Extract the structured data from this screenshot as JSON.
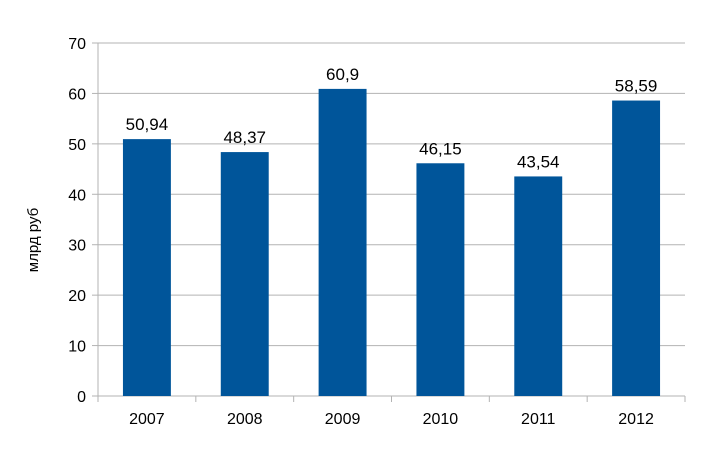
{
  "chart_data": {
    "type": "bar",
    "title": "",
    "xlabel": "",
    "ylabel": "млрд руб",
    "categories": [
      "2007",
      "2008",
      "2009",
      "2010",
      "2011",
      "2012"
    ],
    "values": [
      50.94,
      48.37,
      60.9,
      46.15,
      43.54,
      58.59
    ],
    "data_labels": [
      "50,94",
      "48,37",
      "60,9",
      "46,15",
      "43,54",
      "58,59"
    ],
    "ylim": [
      0,
      70
    ],
    "yticks": [
      0,
      10,
      20,
      30,
      40,
      50,
      60,
      70
    ],
    "ytick_labels": [
      "0",
      "10",
      "20",
      "30",
      "40",
      "50",
      "60",
      "70"
    ],
    "grid": true,
    "legend": "none",
    "bar_color": "#00559A",
    "grid_color": "#B3B3B3"
  }
}
